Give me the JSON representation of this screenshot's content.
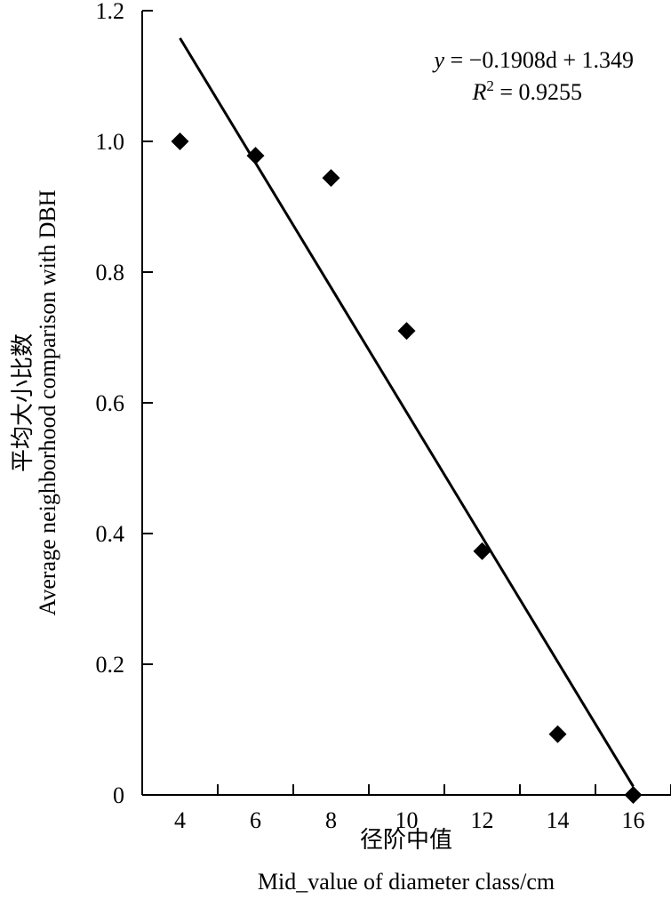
{
  "chart_data": {
    "type": "scatter",
    "y_label_lines": [
      "平均大小比数",
      "Average neighborhood comparison with DBH"
    ],
    "x_label_lines": [
      "径阶中值",
      "Mid_value of diameter class/cm"
    ],
    "x": [
      4,
      6,
      8,
      10,
      12,
      14,
      16
    ],
    "values": [
      1.0,
      0.978,
      0.944,
      0.71,
      0.373,
      0.093,
      0
    ],
    "color": "#000000",
    "xlim": [
      3,
      17
    ],
    "xticks": [
      4,
      6,
      8,
      10,
      12,
      14,
      16
    ],
    "x_tick_marks": [
      5,
      7,
      9,
      11,
      13,
      15,
      17
    ],
    "ylim": [
      0,
      1.2
    ],
    "yticks": [
      0,
      0.2,
      0.4,
      0.6,
      {
        "value": 0.8,
        "label": "0.8"
      },
      {
        "value": 1,
        "label": "1.0"
      },
      1.2
    ],
    "trendline": {
      "x": [
        4,
        16
      ],
      "y": [
        1.158,
        0.013
      ]
    },
    "equation": [
      "y",
      " = −0.1908d + 1.349"
    ],
    "r_squared": [
      "R",
      "2",
      " = 0.9255"
    ]
  }
}
